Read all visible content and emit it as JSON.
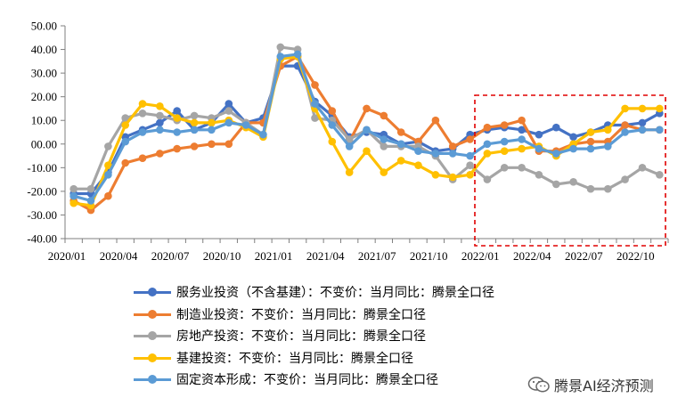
{
  "chart_data": {
    "type": "line",
    "ylim": [
      -40,
      50
    ],
    "yticks": [
      "50.00",
      "40.00",
      "30.00",
      "20.00",
      "10.00",
      "00.00",
      "-10.00",
      "-20.00",
      "-30.00",
      "-40.00"
    ],
    "x_tick_labels": [
      "2020/01",
      "2020/04",
      "2020/07",
      "2020/10",
      "2021/01",
      "2021/04",
      "2021/07",
      "2021/10",
      "2022/01",
      "2022/04",
      "2022/07",
      "2022/10"
    ],
    "x": [
      "2020/01",
      "2020/02",
      "2020/03",
      "2020/04",
      "2020/05",
      "2020/06",
      "2020/07",
      "2020/08",
      "2020/09",
      "2020/10",
      "2020/11",
      "2020/12",
      "2021/01",
      "2021/02",
      "2021/03",
      "2021/04",
      "2021/05",
      "2021/06",
      "2021/07",
      "2021/08",
      "2021/09",
      "2021/10",
      "2021/11",
      "2021/12",
      "2022/01",
      "2022/02",
      "2022/03",
      "2022/04",
      "2022/05",
      "2022/06",
      "2022/07",
      "2022/08",
      "2022/09",
      "2022/10",
      "2022/11"
    ],
    "series": [
      {
        "name": "服务业投资（不含基建）：不变价：当月同比：腾景全口径",
        "color": "#4472C4",
        "values": [
          -21,
          -21,
          -12,
          3,
          6,
          9,
          14,
          6,
          9,
          17,
          9,
          11,
          33,
          33,
          18,
          12,
          3,
          5,
          4,
          0,
          1,
          -3,
          -2,
          4,
          6,
          7,
          6,
          4,
          7,
          3,
          5,
          8,
          8,
          9,
          13
        ]
      },
      {
        "name": "制造业投资：不变价：当月同比：腾景全口径",
        "color": "#ED7D31",
        "values": [
          -24,
          -28,
          -22,
          -8,
          -6,
          -4,
          -2,
          -1,
          0,
          0,
          9,
          9,
          33,
          37,
          25,
          14,
          1,
          15,
          12,
          5,
          1,
          10,
          -1,
          2,
          7,
          8,
          10,
          -3,
          -3,
          0,
          1,
          1,
          8,
          6,
          6
        ]
      },
      {
        "name": "房地产投资：不变价：当月同比：腾景全口径",
        "color": "#A5A5A5",
        "values": [
          -19,
          -19,
          -1,
          11,
          13,
          12,
          10,
          12,
          11,
          14,
          9,
          4,
          41,
          40,
          11,
          10,
          2,
          6,
          -1,
          -1,
          -1,
          -5,
          -15,
          -9,
          -15,
          -10,
          -10,
          -13,
          -17,
          -16,
          -19,
          -19,
          -15,
          -10,
          -13
        ]
      },
      {
        "name": "基建投资：不变价：当月同比：腾景全口径",
        "color": "#FFC000",
        "values": [
          -25,
          -26,
          -9,
          8,
          17,
          16,
          11,
          9,
          9,
          10,
          7,
          3,
          36,
          37,
          15,
          1,
          -12,
          -3,
          -12,
          -7,
          -9,
          -13,
          -14,
          -13,
          -4,
          -3,
          -2,
          -1,
          -5,
          0,
          5,
          6,
          15,
          15,
          15
        ]
      },
      {
        "name": "固定资本形成：不变价：当月同比：腾景全口径",
        "color": "#5B9BD5",
        "values": [
          -22,
          -24,
          -13,
          1,
          5,
          6,
          5,
          6,
          6,
          9,
          8,
          4,
          37,
          38,
          17,
          8,
          -1,
          6,
          2,
          0,
          -3,
          -4,
          -4,
          -5,
          0,
          1,
          2,
          -2,
          -4,
          -2,
          -2,
          -1,
          5,
          6,
          6
        ]
      }
    ]
  },
  "watermark": {
    "text": "腾景AI经济预测"
  }
}
